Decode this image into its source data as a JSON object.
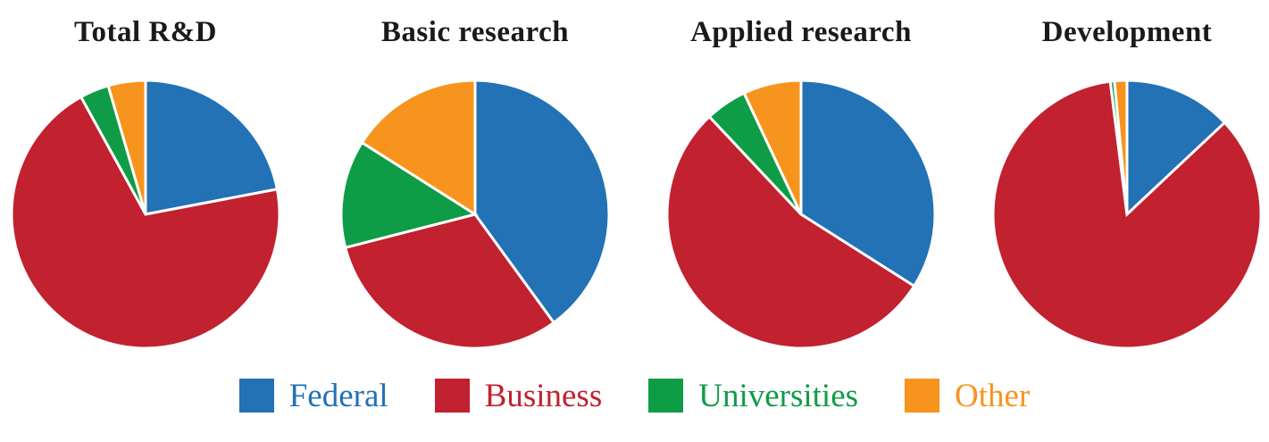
{
  "page": {
    "background_color": "#ffffff",
    "text_color": "#1a1a1a"
  },
  "colors": {
    "federal": "#2272B5",
    "business": "#C2212F",
    "universities": "#0F9C46",
    "other": "#F7941E",
    "slice_separator": "#ffffff"
  },
  "legend": {
    "items": [
      {
        "label": "Federal",
        "color": "#2272B5"
      },
      {
        "label": "Business",
        "color": "#C2212F"
      },
      {
        "label": "Universities",
        "color": "#0F9C46"
      },
      {
        "label": "Other",
        "color": "#F7941E"
      }
    ]
  },
  "chart_data": [
    {
      "type": "pie",
      "title": "Total R&D",
      "categories": [
        "Federal",
        "Business",
        "Universities",
        "Other"
      ],
      "values": [
        22,
        70,
        3.5,
        4.5
      ],
      "unit": "percent",
      "start_angle": "12-o-clock",
      "direction": "clockwise",
      "slice_colors": [
        "#2272B5",
        "#C2212F",
        "#0F9C46",
        "#F7941E"
      ]
    },
    {
      "type": "pie",
      "title": "Basic research",
      "categories": [
        "Federal",
        "Business",
        "Universities",
        "Other"
      ],
      "values": [
        40,
        31,
        13,
        16
      ],
      "unit": "percent",
      "start_angle": "12-o-clock",
      "direction": "clockwise",
      "slice_colors": [
        "#2272B5",
        "#C2212F",
        "#0F9C46",
        "#F7941E"
      ]
    },
    {
      "type": "pie",
      "title": "Applied research",
      "categories": [
        "Federal",
        "Business",
        "Universities",
        "Other"
      ],
      "values": [
        34,
        54,
        5,
        7
      ],
      "unit": "percent",
      "start_angle": "12-o-clock",
      "direction": "clockwise",
      "slice_colors": [
        "#2272B5",
        "#C2212F",
        "#0F9C46",
        "#F7941E"
      ]
    },
    {
      "type": "pie",
      "title": "Development",
      "categories": [
        "Federal",
        "Business",
        "Universities",
        "Other"
      ],
      "values": [
        13,
        85,
        0.5,
        1.5
      ],
      "unit": "percent",
      "start_angle": "12-o-clock",
      "direction": "clockwise",
      "slice_colors": [
        "#2272B5",
        "#C2212F",
        "#0F9C46",
        "#F7941E"
      ]
    }
  ]
}
